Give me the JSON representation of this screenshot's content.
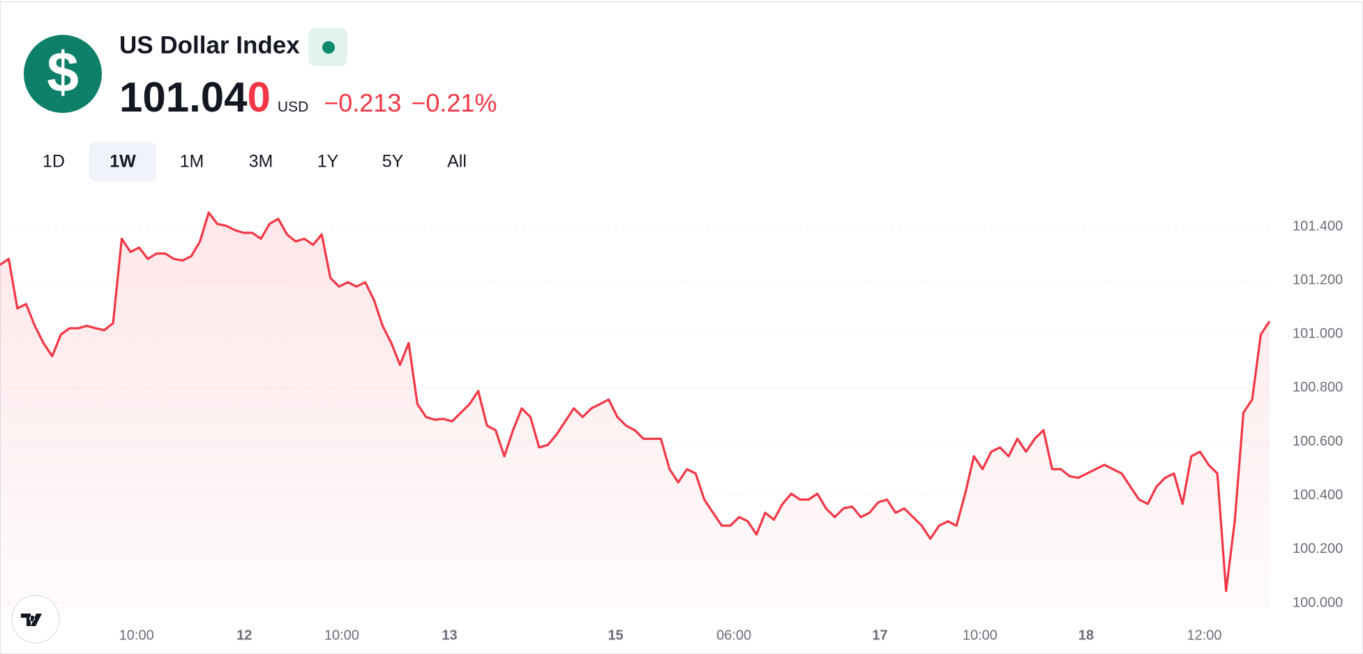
{
  "header": {
    "logo": "$",
    "title": "US Dollar Index",
    "price": {
      "main": "101.04",
      "changed": "0"
    },
    "currency": "USD",
    "change": "−0.213",
    "change_pct": "−0.21%",
    "tabs": [
      "1D",
      "1W",
      "1M",
      "3M",
      "1Y",
      "5Y",
      "All"
    ],
    "selected_tab": 1
  },
  "chart_data": {
    "type": "line",
    "color": "#f23645",
    "grid": true,
    "values": [
      101.258,
      101.28,
      101.096,
      101.112,
      101.031,
      100.967,
      100.918,
      100.999,
      101.022,
      101.022,
      101.031,
      101.022,
      101.015,
      101.041,
      101.355,
      101.306,
      101.322,
      101.28,
      101.3,
      101.3,
      101.28,
      101.274,
      101.29,
      101.345,
      101.452,
      101.41,
      101.403,
      101.387,
      101.377,
      101.377,
      101.355,
      101.41,
      101.429,
      101.371,
      101.345,
      101.355,
      101.332,
      101.371,
      101.209,
      101.177,
      101.193,
      101.177,
      101.193,
      101.128,
      101.031,
      100.967,
      100.886,
      100.967,
      100.74,
      100.692,
      100.682,
      100.685,
      100.676,
      100.708,
      100.74,
      100.789,
      100.66,
      100.643,
      100.546,
      100.643,
      100.724,
      100.692,
      100.579,
      100.588,
      100.627,
      100.676,
      100.724,
      100.692,
      100.724,
      100.74,
      100.757,
      100.692,
      100.66,
      100.643,
      100.611,
      100.611,
      100.611,
      100.498,
      100.449,
      100.498,
      100.482,
      100.385,
      100.336,
      100.288,
      100.288,
      100.32,
      100.304,
      100.255,
      100.336,
      100.31,
      100.369,
      100.407,
      100.385,
      100.385,
      100.407,
      100.352,
      100.32,
      100.352,
      100.359,
      100.32,
      100.336,
      100.375,
      100.385,
      100.336,
      100.352,
      100.32,
      100.288,
      100.239,
      100.288,
      100.304,
      100.288,
      100.407,
      100.546,
      100.498,
      100.563,
      100.579,
      100.546,
      100.611,
      100.563,
      100.611,
      100.643,
      100.498,
      100.498,
      100.472,
      100.466,
      100.482,
      100.498,
      100.514,
      100.498,
      100.482,
      100.433,
      100.385,
      100.369,
      100.433,
      100.466,
      100.482,
      100.369,
      100.546,
      100.563,
      100.514,
      100.482,
      100.045,
      100.304,
      100.708,
      100.757,
      100.999,
      101.048
    ],
    "xlim": [
      0,
      146
    ],
    "xticks": [
      {
        "value": 15.7,
        "label": "10:00"
      },
      {
        "value": 28.1,
        "label": "12"
      },
      {
        "value": 39.3,
        "label": "10:00"
      },
      {
        "value": 51.7,
        "label": "13"
      },
      {
        "value": 70.8,
        "label": "15"
      },
      {
        "value": 84.4,
        "label": "06:00"
      },
      {
        "value": 101.2,
        "label": "17"
      },
      {
        "value": 112.7,
        "label": "10:00"
      },
      {
        "value": 124.9,
        "label": "18"
      },
      {
        "value": 138.5,
        "label": "12:00"
      }
    ],
    "ylim": [
      100.0,
      101.4
    ],
    "yticks": [
      {
        "value": 100.0,
        "label": "100.000"
      },
      {
        "value": 100.2,
        "label": "100.200"
      },
      {
        "value": 100.4,
        "label": "100.400"
      },
      {
        "value": 100.6,
        "label": "100.600"
      },
      {
        "value": 100.8,
        "label": "100.800"
      },
      {
        "value": 101.0,
        "label": "101.000"
      },
      {
        "value": 101.2,
        "label": "101.200"
      },
      {
        "value": 101.4,
        "label": "101.400"
      }
    ]
  }
}
